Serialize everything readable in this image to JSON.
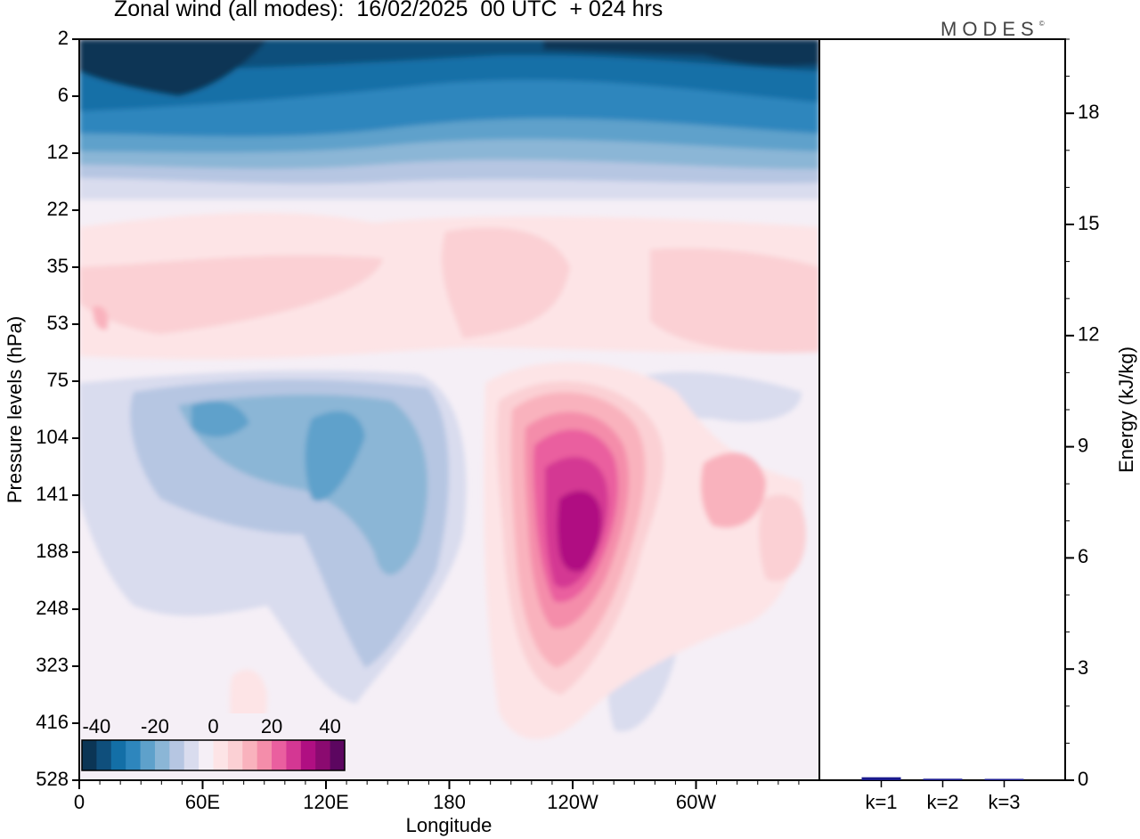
{
  "title": "Zonal wind (all modes):  16/02/2025  00 UTC  + 024 hrs",
  "brand": {
    "text": "MODES",
    "mark": "©"
  },
  "chart_data": [
    {
      "type": "heatmap",
      "title": "Zonal wind (all modes):  16/02/2025  00 UTC  + 024 hrs",
      "xlabel": "Longitude",
      "ylabel": "Pressure levels (hPa)",
      "x_ticks": [
        "0",
        "60E",
        "120E",
        "180",
        "120W",
        "60W"
      ],
      "x_tick_degrees": [
        0,
        60,
        120,
        180,
        240,
        300
      ],
      "xlim": [
        0,
        360
      ],
      "y_ticks": [
        "2",
        "6",
        "12",
        "22",
        "35",
        "53",
        "75",
        "104",
        "141",
        "188",
        "248",
        "323",
        "416",
        "528"
      ],
      "colorbar": {
        "ticks": [
          "-40",
          "-20",
          "0",
          "20",
          "40"
        ],
        "range": [
          -45,
          45
        ],
        "step": 5,
        "colors": [
          "#0b3555",
          "#0f4f7c",
          "#136fa7",
          "#2e86bd",
          "#5ea1cb",
          "#8bb6d6",
          "#b6c6e2",
          "#d9dcee",
          "#f5eff6",
          "#fde4e6",
          "#fbd0d4",
          "#f9b2bd",
          "#f48daa",
          "#ea5f9f",
          "#d43793",
          "#b00f82",
          "#8b0a70",
          "#5c0660"
        ]
      },
      "grid": false,
      "description_note": ""
    },
    {
      "type": "bar",
      "categories": [
        "k=1",
        "k=2",
        "k=3"
      ],
      "values": [
        0.08,
        0.04,
        0.03
      ],
      "ylabel": "Energy (kJ/kg)",
      "ylim": [
        0,
        20
      ],
      "y_ticks": [
        0,
        3,
        6,
        9,
        12,
        15,
        18
      ],
      "bar_color": "#1a1a8c"
    }
  ]
}
